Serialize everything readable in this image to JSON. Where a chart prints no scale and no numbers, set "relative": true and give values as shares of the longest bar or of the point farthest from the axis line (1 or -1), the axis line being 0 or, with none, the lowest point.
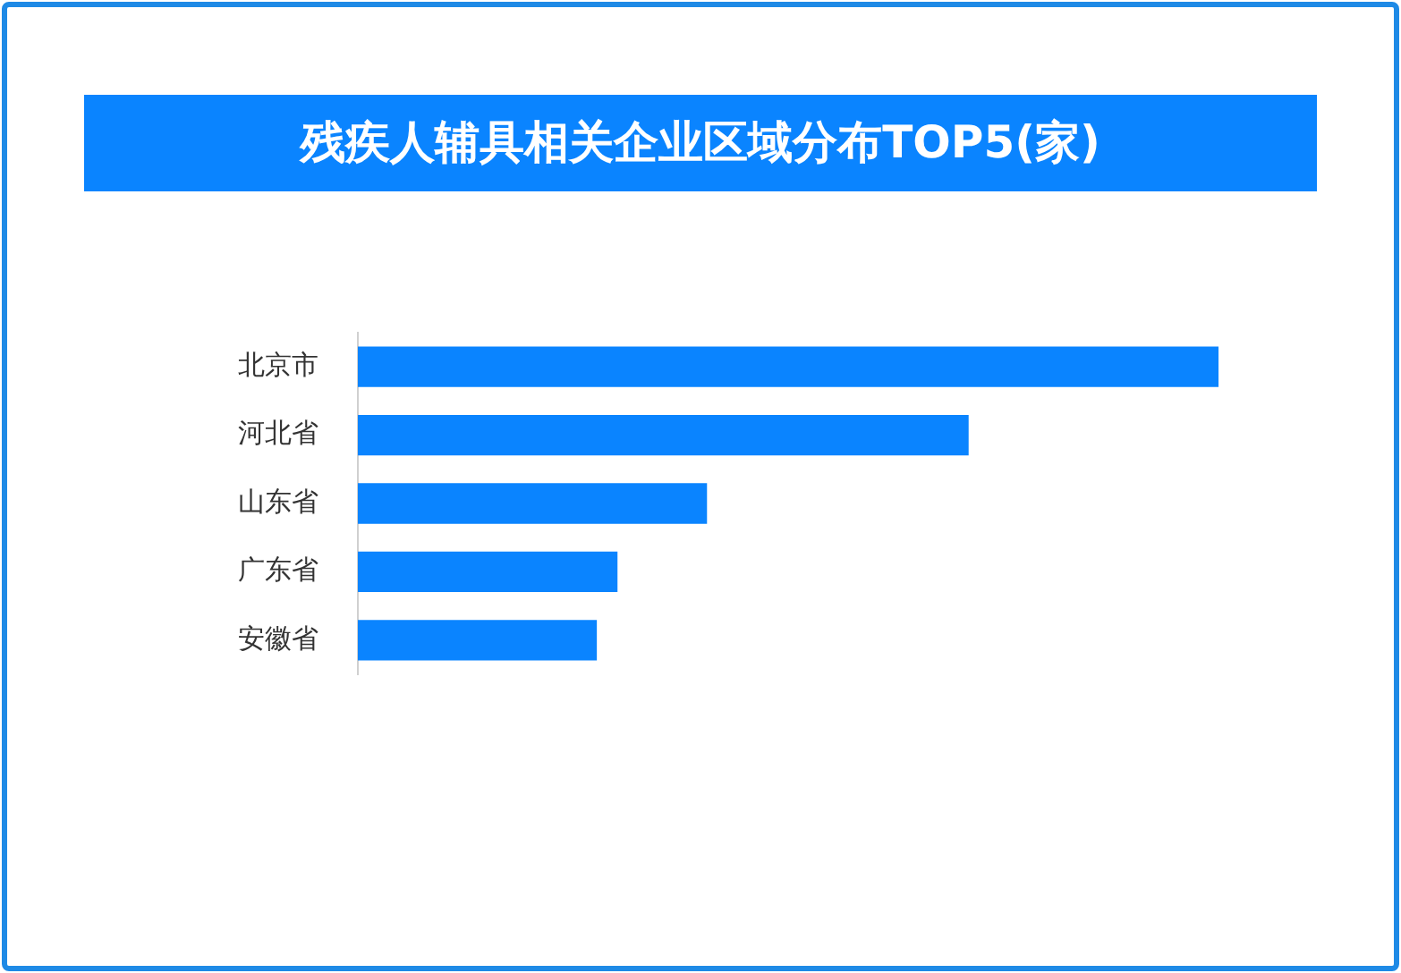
{
  "chart_data": {
    "type": "bar",
    "orientation": "horizontal",
    "relative": true,
    "title": "残疾人辅具相关企业区域分布TOP5(家)",
    "categories": [
      "北京市",
      "河北省",
      "山东省",
      "广东省",
      "安徽省"
    ],
    "values": [
      1,
      0.709,
      0.405,
      0.301,
      0.277
    ],
    "color": "#0a84ff",
    "legend": false
  }
}
